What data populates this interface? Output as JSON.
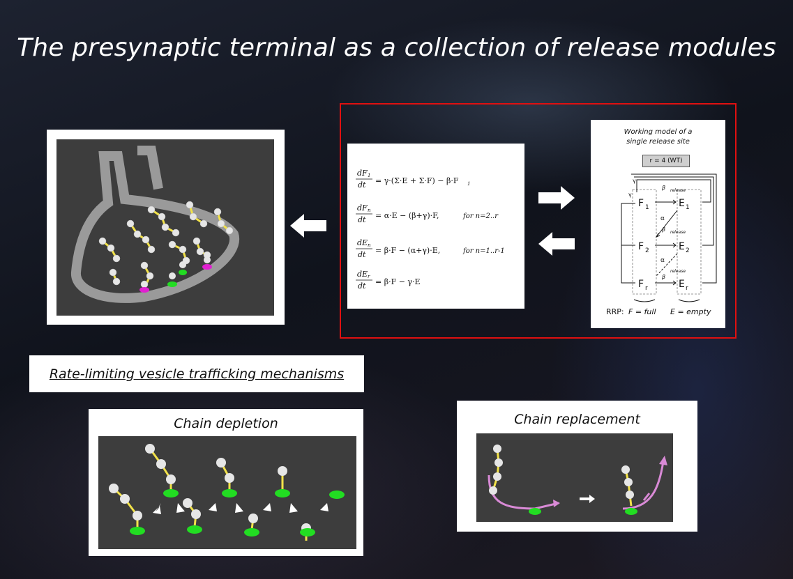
{
  "title": "The presynaptic terminal as a collection of release modules",
  "subtitle": "Rate-limiting vesicle trafficking mechanisms",
  "chain_depletion": {
    "label": "Chain depletion"
  },
  "chain_replacement": {
    "label": "Chain replacement"
  },
  "model": {
    "title_line1": "Working model of a",
    "title_line2": "single release site",
    "r_label": "r = 4 (WT)",
    "release": "release",
    "rrp": "RRP:",
    "full": "F = full",
    "empty": "E = empty"
  },
  "equations": {
    "eq1_lhs": "dF",
    "eq1_sub": "1",
    "eq1_rhs": "= γ·(Σ·E + Σ·F) − β·F",
    "eq2_lhs": "dF",
    "eq2_rhs": "= α·E − (β+γ)·F",
    "eq2_cond": "for n=2..r",
    "eq3_lhs": "dE",
    "eq3_rhs": "= β·F − (α+γ)·E",
    "eq3_cond": "for n=1..r-1",
    "eq4_lhs": "dE",
    "eq4_rhs": "= β·F − γ·E",
    "dt": "dt"
  },
  "colors": {
    "accent": "#e01010",
    "vesicle_site": "#22dd22",
    "site_magenta": "#e020d0",
    "chain": "#f2e24a",
    "arrow_pink": "#d98ad6"
  }
}
